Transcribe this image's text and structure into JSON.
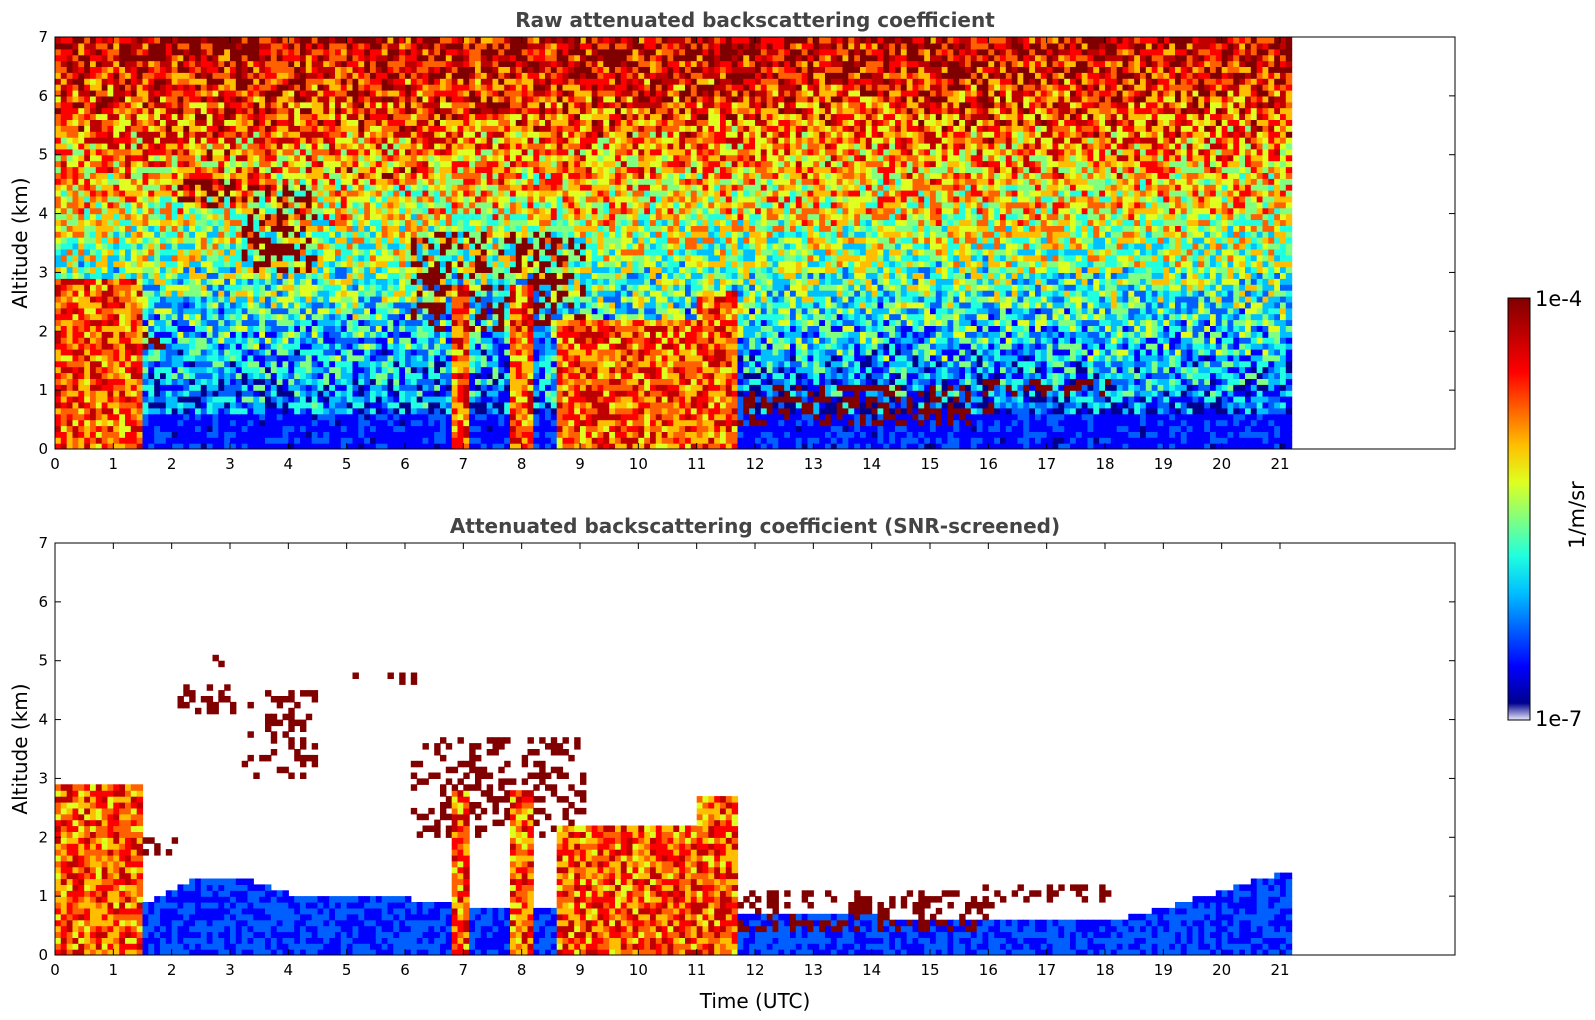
{
  "colors": {
    "colormap": [
      "#00008f",
      "#0000ff",
      "#0060ff",
      "#00bfff",
      "#20ffdf",
      "#80ff80",
      "#dfff20",
      "#ffbf00",
      "#ff6000",
      "#ff0000",
      "#bf0000",
      "#800000"
    ],
    "low_fade": "#e8e8f8",
    "cloud_edge": "#1a0a00",
    "title_text": "#444444"
  },
  "colorbar": {
    "max_label": "1e-4",
    "min_label": "1e-7",
    "unit_label": "1/m/sr",
    "scale": "log"
  },
  "chart_data": [
    {
      "type": "heatmap",
      "title": "Raw attenuated backscattering coefficient",
      "xlabel": "",
      "ylabel": "Altitude (km)",
      "xlim": [
        0,
        24
      ],
      "ylim": [
        0,
        7
      ],
      "x_ticks": [
        0,
        1,
        2,
        3,
        4,
        5,
        6,
        7,
        8,
        9,
        10,
        11,
        12,
        13,
        14,
        15,
        16,
        17,
        18,
        19,
        20,
        21
      ],
      "y_ticks": [
        0,
        1,
        2,
        3,
        4,
        5,
        6,
        7
      ],
      "data_extent_x": [
        0,
        21.15
      ],
      "screened": false,
      "cloud_layers": [
        {
          "x": [
            1.5,
            2.1
          ],
          "y": [
            1.65,
            2.0
          ]
        },
        {
          "x": [
            2.1,
            3.1
          ],
          "y": [
            4.1,
            4.6
          ]
        },
        {
          "x": [
            2.6,
            3.0
          ],
          "y": [
            4.8,
            5.0
          ]
        },
        {
          "x": [
            3.2,
            4.5
          ],
          "y": [
            3.0,
            4.5
          ]
        },
        {
          "x": [
            4.9,
            5.2
          ],
          "y": [
            4.65,
            4.75
          ]
        },
        {
          "x": [
            5.5,
            6.1
          ],
          "y": [
            4.6,
            4.75
          ]
        },
        {
          "x": [
            6.0,
            9.0
          ],
          "y": [
            2.0,
            3.7
          ]
        },
        {
          "x": [
            9.0,
            11.0
          ],
          "y": [
            1.0,
            1.6
          ]
        },
        {
          "x": [
            11.3,
            13.5
          ],
          "y": [
            0.4,
            1.0
          ]
        },
        {
          "x": [
            13.5,
            16.0
          ],
          "y": [
            0.4,
            1.0
          ]
        },
        {
          "x": [
            15.8,
            18.0
          ],
          "y": [
            0.8,
            1.2
          ]
        }
      ],
      "precip_columns": [
        {
          "x": [
            0.0,
            1.45
          ],
          "top_km": 2.9
        },
        {
          "x": [
            6.75,
            7.0
          ],
          "top_km": 2.8
        },
        {
          "x": [
            7.7,
            8.1
          ],
          "top_km": 2.8
        },
        {
          "x": [
            8.5,
            10.9
          ],
          "top_km": 2.2
        },
        {
          "x": [
            10.9,
            11.65
          ],
          "top_km": 2.7
        }
      ]
    },
    {
      "type": "heatmap",
      "title": "Attenuated backscattering coefficient (SNR-screened)",
      "xlabel": "Time (UTC)",
      "ylabel": "Altitude (km)",
      "xlim": [
        0,
        24
      ],
      "ylim": [
        0,
        7
      ],
      "x_ticks": [
        0,
        1,
        2,
        3,
        4,
        5,
        6,
        7,
        8,
        9,
        10,
        11,
        12,
        13,
        14,
        15,
        16,
        17,
        18,
        19,
        20,
        21
      ],
      "y_ticks": [
        0,
        1,
        2,
        3,
        4,
        5,
        6,
        7
      ],
      "data_extent_x": [
        0,
        21.15
      ],
      "screened": true,
      "boundary_layer_top_km": [
        {
          "x": 1.5,
          "top": 0.8
        },
        {
          "x": 2.2,
          "top": 1.2
        },
        {
          "x": 3.0,
          "top": 1.3
        },
        {
          "x": 4.0,
          "top": 1.0
        },
        {
          "x": 5.0,
          "top": 0.9
        },
        {
          "x": 6.0,
          "top": 0.9
        },
        {
          "x": 6.7,
          "top": 0.8
        },
        {
          "x": 18.0,
          "top": 0.5
        },
        {
          "x": 19.5,
          "top": 0.9
        },
        {
          "x": 21.15,
          "top": 1.4
        }
      ]
    }
  ]
}
